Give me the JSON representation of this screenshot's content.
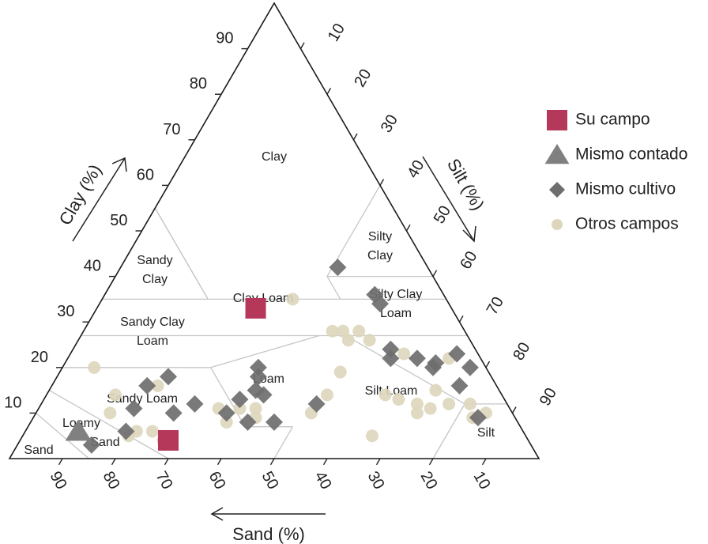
{
  "chart_data": {
    "type": "scatter",
    "subtype": "soil-texture-ternary",
    "title": "",
    "axes": {
      "clay": {
        "label": "Clay (%)",
        "ticks": [
          10,
          20,
          30,
          40,
          50,
          60,
          70,
          80,
          90
        ]
      },
      "silt": {
        "label": "Silt (%)",
        "ticks": [
          10,
          20,
          30,
          40,
          50,
          60,
          70,
          80,
          90
        ]
      },
      "sand": {
        "label": "Sand (%)",
        "ticks": [
          90,
          80,
          70,
          60,
          50,
          40,
          30,
          20,
          10
        ]
      }
    },
    "zones": [
      {
        "name": "clay",
        "lines": [
          "Clay"
        ]
      },
      {
        "name": "silty-clay",
        "lines": [
          "Silty",
          "Clay"
        ]
      },
      {
        "name": "sandy-clay",
        "lines": [
          "Sandy",
          "Clay"
        ]
      },
      {
        "name": "clay-loam",
        "lines": [
          "Clay Loam"
        ]
      },
      {
        "name": "silty-clay-loam",
        "lines": [
          "Silty Clay",
          "Loam"
        ]
      },
      {
        "name": "sandy-clay-loam",
        "lines": [
          "Sandy Clay",
          "Loam"
        ]
      },
      {
        "name": "loam",
        "lines": [
          "Loam"
        ]
      },
      {
        "name": "sandy-loam",
        "lines": [
          "Sandy Loam"
        ]
      },
      {
        "name": "silt-loam",
        "lines": [
          "Silt Loam"
        ]
      },
      {
        "name": "loamy-sand",
        "lines": [
          "Loamy",
          "Sand"
        ]
      },
      {
        "name": "sand",
        "lines": [
          "Sand"
        ]
      },
      {
        "name": "silt",
        "lines": [
          "Silt"
        ]
      }
    ],
    "legend": {
      "position": "right",
      "items": [
        {
          "key": "su_campo",
          "label": "Su campo",
          "marker": "square",
          "color": "#b5385a"
        },
        {
          "key": "mismo_contado",
          "label": "Mismo contado",
          "marker": "triangle",
          "color": "#808080"
        },
        {
          "key": "mismo_cultivo",
          "label": "Mismo cultivo",
          "marker": "diamond",
          "color": "#6e6e6e"
        },
        {
          "key": "otros_campos",
          "label": "Otros campos",
          "marker": "circle",
          "color": "#ddd6bc"
        }
      ]
    },
    "series": [
      {
        "name": "Su campo",
        "key": "su_campo",
        "points": [
          {
            "sand": 37,
            "clay": 33
          },
          {
            "sand": 68,
            "clay": 4
          }
        ]
      },
      {
        "name": "Mismo contado",
        "key": "mismo_contado",
        "points": [
          {
            "sand": 84,
            "clay": 6
          }
        ]
      },
      {
        "name": "Mismo cultivo",
        "key": "mismo_cultivo",
        "points": [
          {
            "sand": 17,
            "clay": 42
          },
          {
            "sand": 13,
            "clay": 36
          },
          {
            "sand": 13,
            "clay": 34
          },
          {
            "sand": 61,
            "clay": 18
          },
          {
            "sand": 66,
            "clay": 16
          },
          {
            "sand": 59,
            "clay": 12
          },
          {
            "sand": 71,
            "clay": 11
          },
          {
            "sand": 64,
            "clay": 10
          },
          {
            "sand": 50,
            "clay": 13
          },
          {
            "sand": 54,
            "clay": 10
          },
          {
            "sand": 43,
            "clay": 20
          },
          {
            "sand": 44,
            "clay": 18
          },
          {
            "sand": 46,
            "clay": 15
          },
          {
            "sand": 45,
            "clay": 14
          },
          {
            "sand": 36,
            "clay": 12
          },
          {
            "sand": 46,
            "clay": 8
          },
          {
            "sand": 51,
            "clay": 8
          },
          {
            "sand": 75,
            "clay": 6
          },
          {
            "sand": 83,
            "clay": 3
          },
          {
            "sand": 17,
            "clay": 22
          },
          {
            "sand": 16,
            "clay": 24
          },
          {
            "sand": 12,
            "clay": 22
          },
          {
            "sand": 10,
            "clay": 20
          },
          {
            "sand": 9,
            "clay": 21
          },
          {
            "sand": 4,
            "clay": 23
          },
          {
            "sand": 3,
            "clay": 20
          },
          {
            "sand": 7,
            "clay": 16
          },
          {
            "sand": 7,
            "clay": 9
          }
        ]
      },
      {
        "name": "Otros campos",
        "key": "otros_campos",
        "points": [
          {
            "sand": 29,
            "clay": 35
          },
          {
            "sand": 25,
            "clay": 28
          },
          {
            "sand": 23,
            "clay": 28
          },
          {
            "sand": 23,
            "clay": 26
          },
          {
            "sand": 20,
            "clay": 28
          },
          {
            "sand": 19,
            "clay": 26
          },
          {
            "sand": 74,
            "clay": 20
          },
          {
            "sand": 73,
            "clay": 14
          },
          {
            "sand": 76,
            "clay": 10
          },
          {
            "sand": 73,
            "clay": 6
          },
          {
            "sand": 75,
            "clay": 5
          },
          {
            "sand": 69,
            "clay": 4
          },
          {
            "sand": 70,
            "clay": 6
          },
          {
            "sand": 64,
            "clay": 16
          },
          {
            "sand": 55,
            "clay": 11
          },
          {
            "sand": 55,
            "clay": 8
          },
          {
            "sand": 51,
            "clay": 11
          },
          {
            "sand": 49,
            "clay": 9
          },
          {
            "sand": 48,
            "clay": 11
          },
          {
            "sand": 38,
            "clay": 10
          },
          {
            "sand": 33,
            "clay": 14
          },
          {
            "sand": 28,
            "clay": 19
          },
          {
            "sand": 29,
            "clay": 5
          },
          {
            "sand": 14,
            "clay": 23
          },
          {
            "sand": 6,
            "clay": 22
          },
          {
            "sand": 22,
            "clay": 14
          },
          {
            "sand": 20,
            "clay": 13
          },
          {
            "sand": 17,
            "clay": 12
          },
          {
            "sand": 15,
            "clay": 11
          },
          {
            "sand": 18,
            "clay": 10
          },
          {
            "sand": 11,
            "clay": 12
          },
          {
            "sand": 12,
            "clay": 15
          },
          {
            "sand": 7,
            "clay": 12
          },
          {
            "sand": 5,
            "clay": 10
          },
          {
            "sand": 8,
            "clay": 9
          }
        ]
      }
    ]
  }
}
